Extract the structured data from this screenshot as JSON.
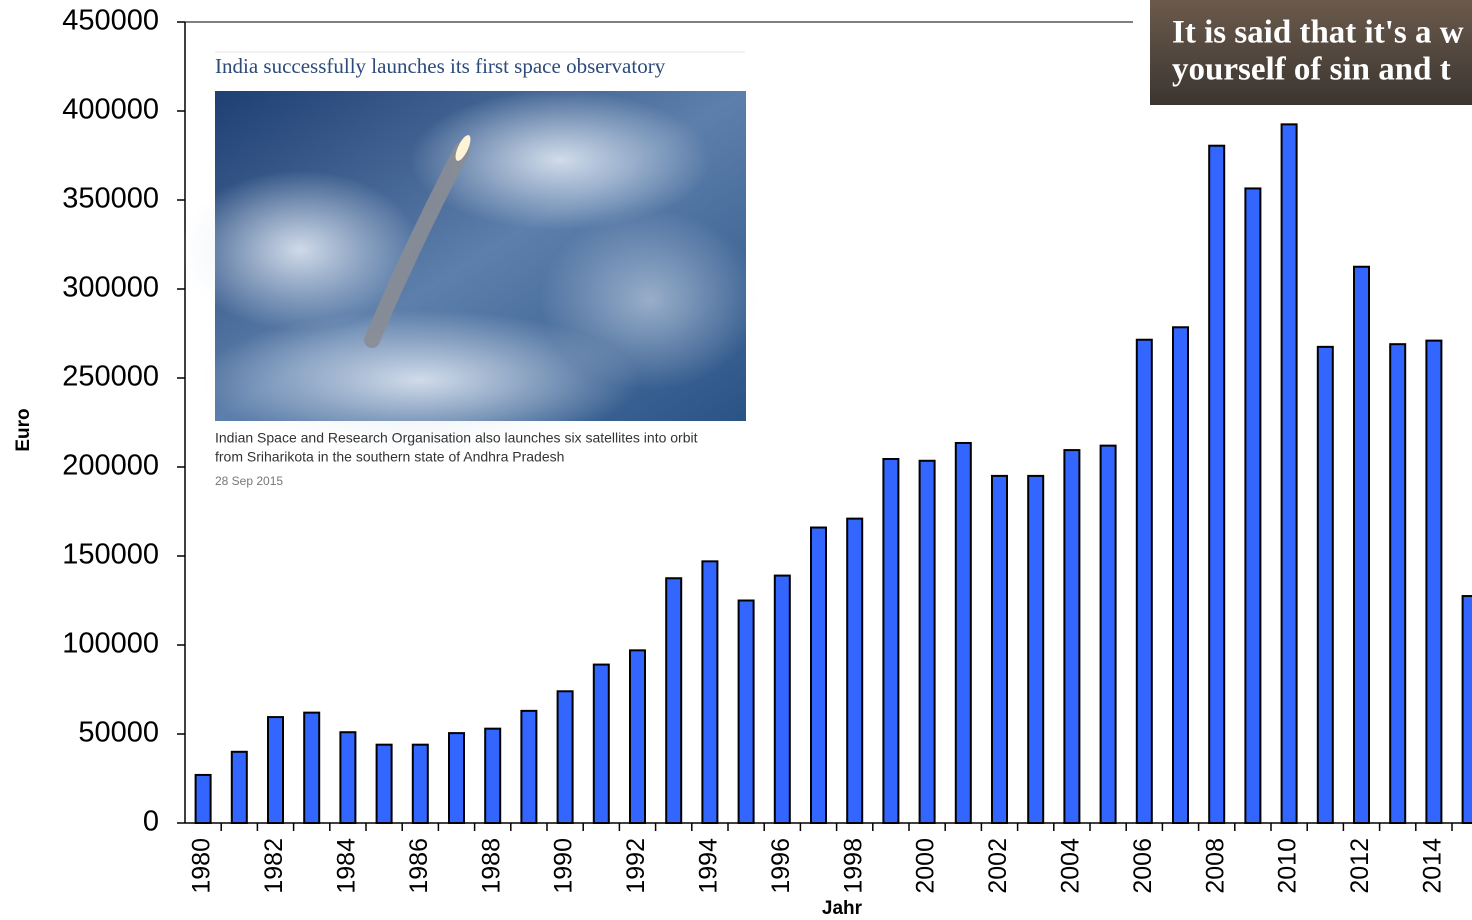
{
  "chart_data": {
    "type": "bar",
    "ylabel": "Euro",
    "xlabel": "Jahr",
    "categories": [
      "1980",
      null,
      "1982",
      null,
      "1984",
      null,
      "1986",
      null,
      "1988",
      null,
      "1990",
      null,
      "1992",
      null,
      "1994",
      null,
      "1996",
      null,
      "1998",
      null,
      "2000",
      null,
      "2002",
      null,
      "2004",
      null,
      "2006",
      null,
      "2008",
      null,
      "2010",
      null,
      "2012",
      null,
      "2014",
      null
    ],
    "values": [
      27000,
      40000,
      59500,
      62000,
      51000,
      44000,
      44000,
      50500,
      53000,
      63000,
      74000,
      89000,
      97000,
      137500,
      147000,
      125000,
      139000,
      166000,
      171000,
      204500,
      203500,
      213500,
      195000,
      195000,
      209500,
      212000,
      271500,
      278500,
      380500,
      356500,
      392500,
      267500,
      312500,
      269000,
      271000,
      127500
    ],
    "color": "#3366ff",
    "ylim": [
      0,
      450000
    ],
    "yticks": [
      0,
      50000,
      100000,
      150000,
      200000,
      250000,
      300000,
      350000,
      400000,
      450000
    ]
  },
  "news_card": {
    "title": "India successfully launches its first space observatory",
    "caption_lines": [
      "Indian Space and Research Organisation also launches six satellites into orbit",
      "from Sriharikota in the southern state of Andhra Pradesh"
    ],
    "date": "28 Sep 2015"
  },
  "video_caption": {
    "lines": [
      "It is said that it's a w",
      "yourself of sin and t"
    ]
  }
}
